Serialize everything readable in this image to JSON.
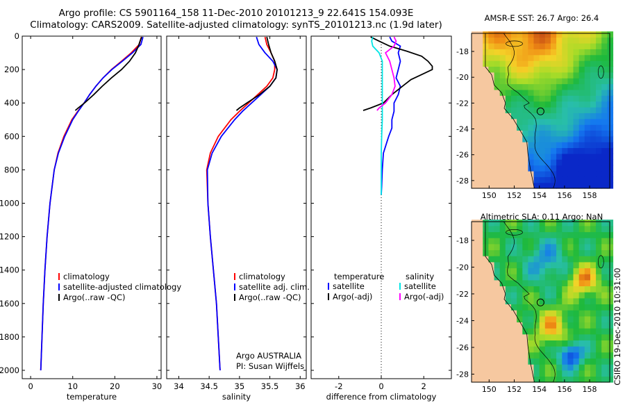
{
  "header": {
    "line1": "Argo profile: CS 5901164_158 11-Dec-2010 20101213_9 22.641S 154.093E",
    "line2": "Climatology: CARS2009. Satellite-adjusted climatology: synTS_20101213.nc (1.9d later)"
  },
  "colors": {
    "climatology": "#ff0000",
    "satellite": "#0000ff",
    "argo": "#000000",
    "sal_satellite": "#00e5e5",
    "sal_argo": "#ff00ff"
  },
  "chart_data": [
    {
      "type": "line",
      "title": "",
      "xlabel": "temperature",
      "ylabel": "",
      "xlim": [
        -2,
        31
      ],
      "ylim": [
        2050,
        0
      ],
      "x_ticks": [
        0,
        10,
        20,
        30
      ],
      "y_ticks": [
        0,
        200,
        400,
        600,
        800,
        1000,
        1200,
        1400,
        1600,
        1800,
        2000
      ],
      "legend": [
        "climatology",
        "satellite-adjusted climatology",
        "Argo(..raw -QC)"
      ],
      "series": [
        {
          "name": "climatology",
          "color": "#ff0000",
          "depth": [
            5,
            50,
            100,
            150,
            200,
            250,
            300,
            350,
            400,
            450,
            500,
            600,
            700,
            800,
            1000,
            1200,
            1400,
            1600,
            1800,
            2000
          ],
          "values": [
            26.3,
            25.8,
            23.9,
            21.6,
            19.2,
            17.2,
            15.5,
            14.0,
            12.7,
            11.2,
            9.8,
            7.9,
            6.5,
            5.6,
            4.6,
            3.9,
            3.4,
            3.0,
            2.7,
            2.4
          ]
        },
        {
          "name": "satellite-adjusted climatology",
          "color": "#0000ff",
          "depth": [
            5,
            50,
            100,
            150,
            200,
            250,
            300,
            350,
            400,
            450,
            500,
            600,
            700,
            800,
            1000,
            1200,
            1400,
            1600,
            1800,
            2000
          ],
          "values": [
            26.7,
            26.2,
            24.2,
            21.8,
            19.3,
            17.2,
            15.5,
            14.0,
            12.7,
            11.3,
            10.0,
            8.1,
            6.6,
            5.6,
            4.6,
            3.9,
            3.4,
            3.0,
            2.7,
            2.4
          ]
        },
        {
          "name": "Argo(..raw -QC)",
          "color": "#000000",
          "depth": [
            5,
            30,
            60,
            100,
            150,
            200,
            250,
            300,
            350,
            400,
            430,
            445
          ],
          "values": [
            26.4,
            26.0,
            25.6,
            24.9,
            23.5,
            21.6,
            19.2,
            17.0,
            15.0,
            12.8,
            11.3,
            10.6
          ]
        }
      ]
    },
    {
      "type": "line",
      "title": "",
      "xlabel": "salinity",
      "ylabel": "",
      "xlim": [
        33.8,
        36.1
      ],
      "ylim": [
        2050,
        0
      ],
      "x_ticks": [
        34,
        34.5,
        35,
        35.5,
        36
      ],
      "y_ticks": [
        0,
        200,
        400,
        600,
        800,
        1000,
        1200,
        1400,
        1600,
        1800,
        2000
      ],
      "legend": [
        "climatology",
        "satellite adj. clim.",
        "Argo(..raw -QC)"
      ],
      "annotations": [
        "Argo AUSTRALIA",
        "PI: Susan Wijffels"
      ],
      "series": [
        {
          "name": "climatology",
          "color": "#ff0000",
          "depth": [
            5,
            50,
            100,
            150,
            200,
            250,
            300,
            350,
            400,
            450,
            500,
            600,
            700,
            800,
            1000,
            1200,
            1400,
            1600,
            1800,
            2000
          ],
          "values": [
            35.42,
            35.45,
            35.52,
            35.58,
            35.58,
            35.55,
            35.45,
            35.3,
            35.15,
            35.0,
            34.86,
            34.65,
            34.52,
            34.46,
            34.48,
            34.52,
            34.57,
            34.62,
            34.65,
            34.68
          ]
        },
        {
          "name": "satellite adj. clim.",
          "color": "#0000ff",
          "depth": [
            5,
            50,
            100,
            150,
            200,
            250,
            300,
            350,
            400,
            450,
            500,
            600,
            700,
            800,
            1000,
            1200,
            1400,
            1600,
            1800,
            2000
          ],
          "values": [
            35.28,
            35.32,
            35.42,
            35.55,
            35.62,
            35.6,
            35.5,
            35.35,
            35.2,
            35.05,
            34.92,
            34.7,
            34.55,
            34.47,
            34.48,
            34.52,
            34.57,
            34.62,
            34.65,
            34.68
          ]
        },
        {
          "name": "Argo(..raw -QC)",
          "color": "#000000",
          "depth": [
            5,
            50,
            100,
            150,
            200,
            250,
            300,
            350,
            400,
            430,
            445
          ],
          "values": [
            35.45,
            35.48,
            35.52,
            35.58,
            35.62,
            35.6,
            35.5,
            35.33,
            35.12,
            35.0,
            34.95
          ]
        }
      ]
    },
    {
      "type": "line",
      "title": "",
      "xlabel": "difference from climatology",
      "ylabel": "",
      "xlim": [
        -3.3,
        3.3
      ],
      "ylim": [
        2050,
        0
      ],
      "x_ticks": [
        -2,
        0,
        2
      ],
      "y_ticks": [
        0,
        200,
        400,
        600,
        800,
        1000,
        1200,
        1400,
        1600,
        1800,
        2000
      ],
      "legend_headings": [
        "temperature",
        "salinity"
      ],
      "legend": [
        "satellite",
        "Argo(-adj)",
        "satellite",
        "Argo(-adj)"
      ],
      "series": [
        {
          "name": "temperature satellite",
          "color": "#0000ff",
          "depth": [
            5,
            30,
            60,
            100,
            150,
            200,
            250,
            300,
            350,
            400,
            450,
            500,
            550,
            600,
            700,
            800,
            900,
            950
          ],
          "values": [
            0.4,
            0.5,
            0.9,
            0.8,
            0.9,
            0.8,
            0.7,
            0.9,
            0.8,
            0.6,
            0.6,
            0.5,
            0.5,
            0.35,
            0.1,
            0.05,
            0.02,
            0.0
          ]
        },
        {
          "name": "temperature Argo(-adj)",
          "color": "#000000",
          "depth": [
            5,
            30,
            60,
            90,
            120,
            150,
            180,
            200,
            230,
            260,
            300,
            350,
            400,
            430,
            445
          ],
          "values": [
            -0.5,
            -0.1,
            0.4,
            1.2,
            1.9,
            2.2,
            2.4,
            2.4,
            1.9,
            1.4,
            1.0,
            0.5,
            0.1,
            -0.5,
            -0.85
          ]
        },
        {
          "name": "salinity satellite",
          "color": "#00e5e5",
          "depth": [
            5,
            30,
            60,
            100,
            150,
            200,
            300,
            400,
            500,
            600,
            700,
            800,
            900,
            950
          ],
          "values": [
            -0.4,
            -0.45,
            -0.4,
            -0.1,
            0.05,
            0.05,
            0.05,
            0.05,
            0.05,
            0.02,
            0.0,
            0.0,
            0.0,
            0.0
          ]
        },
        {
          "name": "salinity Argo(-adj)",
          "color": "#ff00ff",
          "depth": [
            5,
            30,
            60,
            100,
            150,
            200,
            250,
            300,
            350,
            400,
            430,
            445
          ],
          "values": [
            0.6,
            0.7,
            0.6,
            0.2,
            0.4,
            0.5,
            0.6,
            0.65,
            0.5,
            0.2,
            -0.1,
            -0.2
          ]
        }
      ]
    },
    {
      "type": "heatmap",
      "title": "AMSR-E SST: 26.7  Argo: 26.4",
      "xlabel": "",
      "ylabel": "",
      "xlim": [
        148.6,
        159.6
      ],
      "ylim": [
        -28.6,
        -16.6
      ],
      "x_ticks": [
        150,
        152,
        154,
        156,
        158
      ],
      "y_ticks": [
        -18,
        -20,
        -22,
        -24,
        -26,
        -28
      ],
      "argo_position": [
        154.093,
        -22.641
      ]
    },
    {
      "type": "heatmap",
      "title": "Altimetric SLA: 0.11  Argo: NaN",
      "xlabel": "",
      "ylabel": "",
      "xlim": [
        148.6,
        159.6
      ],
      "ylim": [
        -28.6,
        -16.6
      ],
      "x_ticks": [
        150,
        152,
        154,
        156,
        158
      ],
      "y_ticks": [
        -18,
        -20,
        -22,
        -24,
        -26,
        -28
      ],
      "argo_position": [
        154.093,
        -22.641
      ]
    }
  ],
  "footer": {
    "side_label": "CSIRO 19-Dec-2010 10:31:00"
  }
}
